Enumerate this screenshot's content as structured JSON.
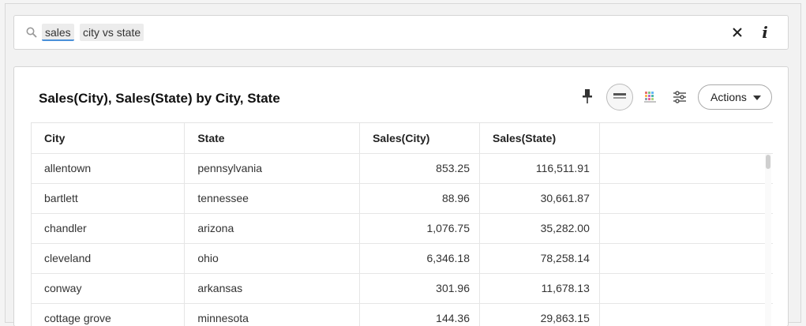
{
  "search": {
    "tokens": [
      {
        "label": "sales"
      },
      {
        "label": "city vs state"
      }
    ]
  },
  "card": {
    "title": "Sales(City), Sales(State) by City, State",
    "actions_label": "Actions"
  },
  "table": {
    "columns": [
      "City",
      "State",
      "Sales(City)",
      "Sales(State)"
    ],
    "rows": [
      [
        "allentown",
        "pennsylvania",
        "853.25",
        "116,511.91"
      ],
      [
        "bartlett",
        "tennessee",
        "88.96",
        "30,661.87"
      ],
      [
        "chandler",
        "arizona",
        "1,076.75",
        "35,282.00"
      ],
      [
        "cleveland",
        "ohio",
        "6,346.18",
        "78,258.14"
      ],
      [
        "conway",
        "arkansas",
        "301.96",
        "11,678.13"
      ],
      [
        "cottage grove",
        "minnesota",
        "144.36",
        "29,863.15"
      ]
    ]
  },
  "icons": {
    "search": "search-icon",
    "clear": "close-icon",
    "info": "info-icon",
    "pin": "pin-icon",
    "table_view": "table-view-icon",
    "chart": "chart-type-icon",
    "settings": "sliders-icon",
    "caret": "caret-down-icon"
  },
  "colors": {
    "token_underline": "#4a90d9",
    "token_bg": "#ececec"
  }
}
